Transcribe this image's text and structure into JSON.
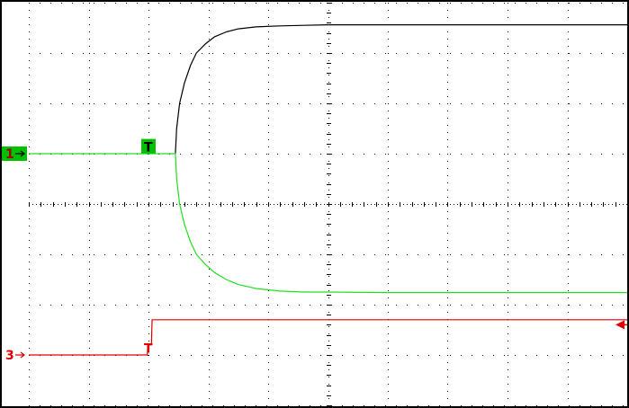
{
  "chart_data": {
    "type": "line",
    "title": "",
    "xlabel": "",
    "ylabel": "",
    "grid": true,
    "grid_style": "dotted",
    "x_divisions": 10,
    "y_divisions": 8,
    "xlim": [
      0,
      10
    ],
    "ylim": [
      -4,
      4
    ],
    "trigger_x": 2.0,
    "markers": [
      {
        "label": "1",
        "level": 1.0,
        "color": "#00c000",
        "badge": true
      },
      {
        "label": "3",
        "level": -3.0,
        "color": "#e00000",
        "badge": false
      }
    ],
    "trigger_markers": [
      {
        "label": "T",
        "x": 2.0,
        "level": 1.15,
        "color": "#00c000",
        "badge": true
      },
      {
        "label": "T",
        "x": 2.0,
        "level": -2.85,
        "color": "#e00000",
        "badge": false
      }
    ],
    "right_marker": {
      "level": -2.4,
      "color": "#e00000"
    },
    "series": [
      {
        "color": "#000000",
        "x": [
          2.45,
          2.47,
          2.52,
          2.6,
          2.7,
          2.8,
          2.95,
          3.1,
          3.3,
          3.5,
          3.8,
          4.2,
          4.6,
          5.0,
          6.0,
          7.0,
          8.0,
          9.0,
          10.0
        ],
        "y": [
          1.0,
          1.5,
          2.0,
          2.4,
          2.75,
          3.0,
          3.18,
          3.32,
          3.42,
          3.48,
          3.52,
          3.54,
          3.55,
          3.56,
          3.56,
          3.56,
          3.56,
          3.56,
          3.56
        ]
      },
      {
        "color": "#22dd22",
        "x": [
          0.0,
          0.5,
          1.0,
          1.5,
          2.0,
          2.45,
          2.47,
          2.52,
          2.6,
          2.7,
          2.8,
          2.95,
          3.1,
          3.3,
          3.5,
          3.8,
          4.2,
          4.6,
          5.0,
          6.0,
          7.0,
          8.0,
          9.0,
          10.0
        ],
        "y": [
          1.0,
          1.0,
          1.0,
          1.0,
          1.0,
          1.0,
          0.5,
          0.0,
          -0.4,
          -0.75,
          -1.0,
          -1.2,
          -1.36,
          -1.5,
          -1.6,
          -1.68,
          -1.73,
          -1.75,
          -1.75,
          -1.76,
          -1.76,
          -1.76,
          -1.76,
          -1.76
        ]
      },
      {
        "color": "#e00000",
        "x": [
          0.0,
          0.5,
          1.0,
          1.5,
          1.98,
          1.99,
          2.05,
          2.06,
          3.0,
          4.0,
          5.0,
          6.0,
          7.0,
          8.0,
          9.0,
          10.0
        ],
        "y": [
          -3.0,
          -3.0,
          -3.0,
          -3.0,
          -3.0,
          -2.8,
          -2.8,
          -2.3,
          -2.3,
          -2.3,
          -2.3,
          -2.3,
          -2.3,
          -2.3,
          -2.3,
          -2.3
        ]
      }
    ]
  }
}
